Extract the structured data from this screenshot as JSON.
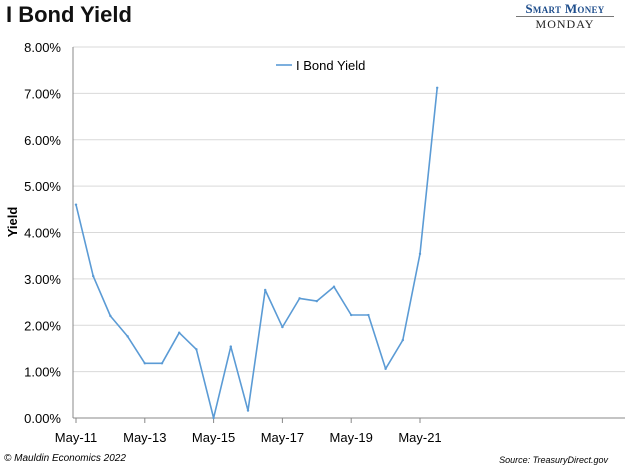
{
  "header": {
    "title": "I Bond Yield",
    "brand_top": "Smart Money",
    "brand_bottom": "MONDAY"
  },
  "footer": {
    "copyright": "© Mauldin Economics 2022",
    "source": "Source: TreasuryDirect.gov"
  },
  "colors": {
    "line": "#5b9bd5",
    "grid": "#d9d9d9",
    "axis": "#888888",
    "brand": "#1f4e8c"
  },
  "chart_data": {
    "type": "line",
    "title": "",
    "xlabel": "",
    "ylabel": "Yield",
    "y_unit": "percent",
    "ylim": [
      0,
      8
    ],
    "y_ticks": [
      "0.00%",
      "1.00%",
      "2.00%",
      "3.00%",
      "4.00%",
      "5.00%",
      "6.00%",
      "7.00%",
      "8.00%"
    ],
    "x_ticks": [
      "May-11",
      "May-13",
      "May-15",
      "May-17",
      "May-19",
      "May-21"
    ],
    "grid": true,
    "legend_position": "top-center",
    "series": [
      {
        "name": "I Bond Yield",
        "x": [
          "May-11",
          "Nov-11",
          "May-12",
          "Nov-12",
          "May-13",
          "Nov-13",
          "May-14",
          "Nov-14",
          "May-15",
          "Nov-15",
          "May-16",
          "Nov-16",
          "May-17",
          "Nov-17",
          "May-18",
          "Nov-18",
          "May-19",
          "Nov-19",
          "May-20",
          "Nov-20",
          "May-21",
          "Nov-21"
        ],
        "values": [
          4.6,
          3.06,
          2.2,
          1.76,
          1.18,
          1.18,
          1.84,
          1.48,
          0.0,
          1.54,
          0.16,
          2.76,
          1.96,
          2.58,
          2.52,
          2.83,
          2.22,
          2.22,
          1.06,
          1.68,
          3.54,
          7.12
        ]
      }
    ]
  }
}
